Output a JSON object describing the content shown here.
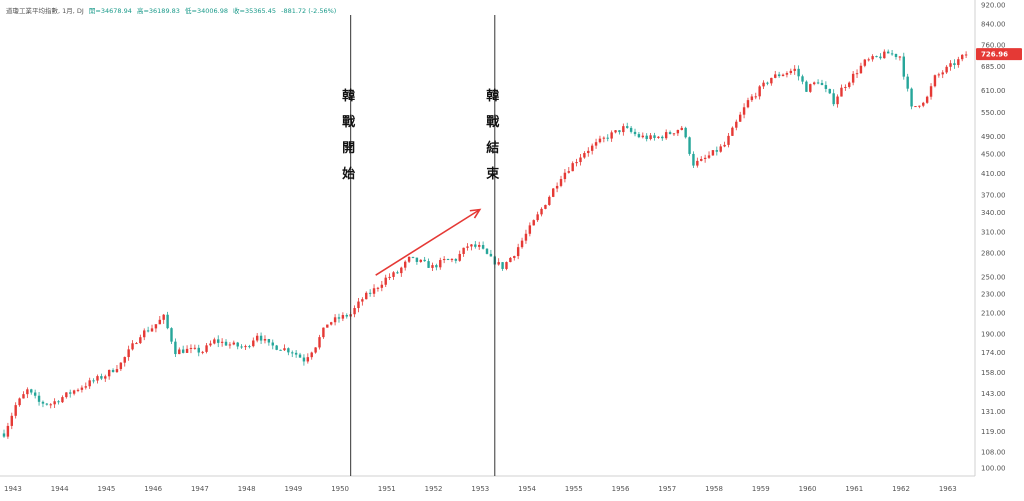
{
  "header": {
    "title": "道瓊工業平均指數, 1月, DJ",
    "open": "開=34678.94",
    "high": "高=36189.83",
    "low": "低=34006.98",
    "close": "收=35365.45",
    "change": "-881.72 (-2.56%)"
  },
  "chart_data": {
    "type": "candlestick",
    "scale": "log",
    "x_ticks": [
      "1943",
      "1944",
      "1945",
      "1946",
      "1947",
      "1948",
      "1949",
      "1950",
      "1951",
      "1952",
      "1953",
      "1954",
      "1955",
      "1956",
      "1957",
      "1958",
      "1959",
      "1960",
      "1961",
      "1962",
      "1963"
    ],
    "y_ticks": [
      "920.00",
      "840.00",
      "760.00",
      "685.00",
      "610.00",
      "550.00",
      "490.00",
      "450.00",
      "410.00",
      "370.00",
      "340.00",
      "310.00",
      "280.00",
      "250.00",
      "230.00",
      "210.00",
      "190.00",
      "174.00",
      "158.00",
      "143.00",
      "131.00",
      "119.00",
      "108.00",
      "100.00"
    ],
    "last_price": "726.96",
    "colors": {
      "up": "#e53935",
      "down": "#26a69a",
      "arrow": "#e53935",
      "vline": "#333333",
      "price_tag": "#e53935"
    },
    "path": [
      [
        "1943-01",
        118
      ],
      [
        "1943-04",
        135
      ],
      [
        "1943-07",
        145
      ],
      [
        "1943-10",
        137
      ],
      [
        "1944-01",
        136
      ],
      [
        "1944-07",
        145
      ],
      [
        "1944-12",
        152
      ],
      [
        "1945-03",
        156
      ],
      [
        "1945-07",
        165
      ],
      [
        "1945-12",
        190
      ],
      [
        "1946-03",
        196
      ],
      [
        "1946-06",
        206
      ],
      [
        "1946-09",
        175
      ],
      [
        "1946-12",
        176
      ],
      [
        "1947-04",
        175
      ],
      [
        "1947-07",
        184
      ],
      [
        "1947-12",
        180
      ],
      [
        "1948-03",
        178
      ],
      [
        "1948-06",
        190
      ],
      [
        "1948-09",
        180
      ],
      [
        "1948-12",
        178
      ],
      [
        "1949-03",
        175
      ],
      [
        "1949-06",
        168
      ],
      [
        "1949-09",
        180
      ],
      [
        "1949-12",
        200
      ],
      [
        "1950-03",
        205
      ],
      [
        "1950-06",
        209
      ],
      [
        "1950-09",
        225
      ],
      [
        "1950-12",
        235
      ],
      [
        "1951-03",
        248
      ],
      [
        "1951-06",
        255
      ],
      [
        "1951-09",
        272
      ],
      [
        "1951-12",
        268
      ],
      [
        "1952-03",
        262
      ],
      [
        "1952-06",
        270
      ],
      [
        "1952-09",
        272
      ],
      [
        "1952-12",
        290
      ],
      [
        "1953-03",
        288
      ],
      [
        "1953-06",
        272
      ],
      [
        "1953-09",
        262
      ],
      [
        "1953-12",
        280
      ],
      [
        "1954-06",
        335
      ],
      [
        "1954-12",
        405
      ],
      [
        "1955-06",
        455
      ],
      [
        "1955-12",
        490
      ],
      [
        "1956-04",
        510
      ],
      [
        "1956-08",
        490
      ],
      [
        "1956-12",
        485
      ],
      [
        "1957-04",
        498
      ],
      [
        "1957-07",
        512
      ],
      [
        "1957-10",
        430
      ],
      [
        "1957-12",
        435
      ],
      [
        "1958-06",
        470
      ],
      [
        "1958-12",
        580
      ],
      [
        "1959-06",
        650
      ],
      [
        "1959-12",
        675
      ],
      [
        "1960-03",
        615
      ],
      [
        "1960-06",
        640
      ],
      [
        "1960-10",
        580
      ],
      [
        "1960-12",
        615
      ],
      [
        "1961-06",
        700
      ],
      [
        "1961-12",
        730
      ],
      [
        "1962-03",
        720
      ],
      [
        "1962-06",
        560
      ],
      [
        "1962-10",
        590
      ],
      [
        "1962-12",
        650
      ],
      [
        "1963-06",
        705
      ],
      [
        "1963-08",
        727
      ]
    ],
    "annotations": [
      {
        "label": "韓戰開始",
        "date": "1950-06"
      },
      {
        "label": "韓戰結束",
        "date": "1953-07"
      }
    ],
    "arrow": {
      "from": [
        "1950-06",
        252
      ],
      "to": [
        "1953-07",
        345
      ]
    }
  }
}
